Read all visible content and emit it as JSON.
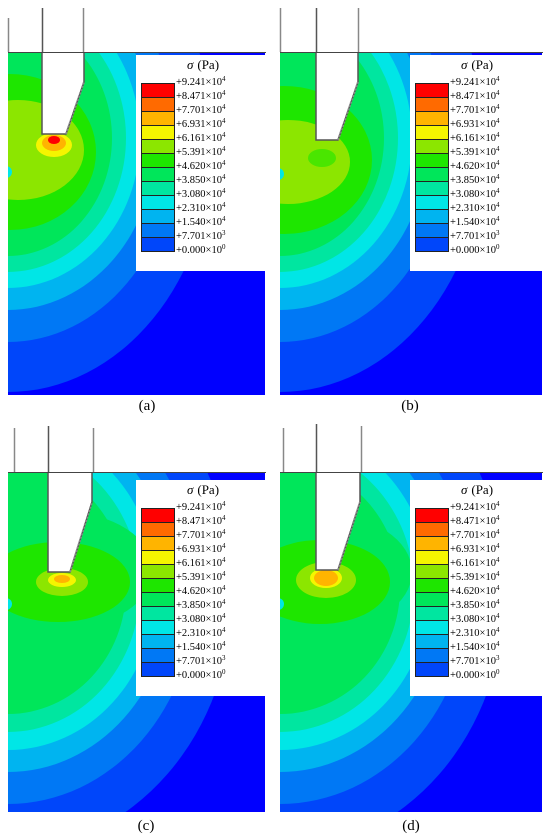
{
  "panels": [
    {
      "caption": "(a)"
    },
    {
      "caption": "(b)"
    },
    {
      "caption": "(c)"
    },
    {
      "caption": "(d)"
    }
  ],
  "legend": {
    "symbol": "σ",
    "unit": "(Pa)",
    "levels": [
      {
        "mantissa": "+9.241×10",
        "exp": "4",
        "color": "#ff0000"
      },
      {
        "mantissa": "+8.471×10",
        "exp": "4",
        "color": "#ff6a00"
      },
      {
        "mantissa": "+7.701×10",
        "exp": "4",
        "color": "#ffb400"
      },
      {
        "mantissa": "+6.931×10",
        "exp": "4",
        "color": "#f5f500"
      },
      {
        "mantissa": "+6.161×10",
        "exp": "4",
        "color": "#8ce600"
      },
      {
        "mantissa": "+5.391×10",
        "exp": "4",
        "color": "#1ee600"
      },
      {
        "mantissa": "+4.620×10",
        "exp": "4",
        "color": "#00e65a"
      },
      {
        "mantissa": "+3.850×10",
        "exp": "4",
        "color": "#00e6a0"
      },
      {
        "mantissa": "+3.080×10",
        "exp": "4",
        "color": "#00e6e6"
      },
      {
        "mantissa": "+2.310×10",
        "exp": "4",
        "color": "#00b4f0"
      },
      {
        "mantissa": "+1.540×10",
        "exp": "4",
        "color": "#0078f5"
      },
      {
        "mantissa": "+7.701×10",
        "exp": "3",
        "color": "#0046fa"
      },
      {
        "mantissa": "+0.000×10",
        "exp": "0",
        "color": "#0000ff"
      }
    ]
  }
}
